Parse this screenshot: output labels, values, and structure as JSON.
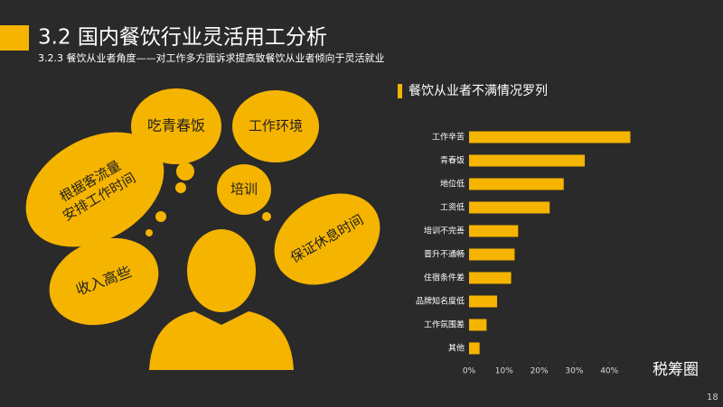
{
  "slide": {
    "title": "3.2 国内餐饮行业灵活用工分析",
    "subtitle": "3.2.3 餐饮从业者角度——对工作多方面诉求提高致餐饮从业者倾向于灵活就业",
    "bubbles": [
      {
        "lines": [
          "吃青春饭"
        ]
      },
      {
        "lines": [
          "工作环境"
        ]
      },
      {
        "lines": [
          "根据客流量",
          "安排工作时间"
        ]
      },
      {
        "lines": [
          "培训"
        ]
      },
      {
        "lines": [
          "保证休息时间"
        ]
      },
      {
        "lines": [
          "收入高些"
        ]
      }
    ],
    "brand": "税筹圈",
    "page": "18"
  },
  "chart_data": {
    "type": "hbar",
    "title": "餐饮从业者不满情况罗列",
    "categories": [
      "工作辛苦",
      "青春饭",
      "地位低",
      "工资低",
      "培训不完善",
      "晋升不通畅",
      "住宿条件差",
      "品牌知名度低",
      "工作氛围差",
      "其他"
    ],
    "values": [
      46,
      33,
      27,
      23,
      14,
      13,
      12,
      8,
      5,
      3
    ],
    "color": "#f5b400",
    "xlim": [
      0,
      50
    ],
    "xticks": [
      {
        "value": 0,
        "label": "0%"
      },
      {
        "value": 10,
        "label": "10%"
      },
      {
        "value": 20,
        "label": "20%"
      },
      {
        "value": 30,
        "label": "30%"
      },
      {
        "value": 40,
        "label": "40%"
      }
    ],
    "grid": false
  }
}
